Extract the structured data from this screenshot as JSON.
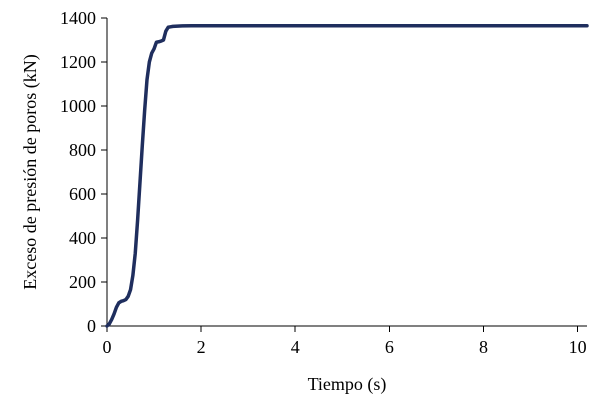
{
  "chart_data": {
    "type": "line",
    "title": "",
    "xlabel": "Tiempo (s)",
    "ylabel": "Exceso de presión de poros (kN)",
    "xlim": [
      0,
      10.2
    ],
    "ylim": [
      0,
      1400
    ],
    "xticks": [
      0,
      2,
      4,
      6,
      8,
      10
    ],
    "yticks": [
      0,
      200,
      400,
      600,
      800,
      1000,
      1200,
      1400
    ],
    "grid": false,
    "legend": "none",
    "series_color": "#1f2e5e",
    "series": [
      {
        "x": [
          0,
          0.05,
          0.1,
          0.15,
          0.2,
          0.25,
          0.3,
          0.35,
          0.4,
          0.45,
          0.5,
          0.55,
          0.6,
          0.65,
          0.7,
          0.75,
          0.8,
          0.85,
          0.9,
          0.95,
          1.0,
          1.05,
          1.1,
          1.15,
          1.2,
          1.25,
          1.3,
          1.35,
          1.4,
          1.5,
          1.6,
          1.8,
          2.0,
          4.0,
          6.0,
          8.0,
          10.2
        ],
        "y": [
          0,
          10,
          30,
          55,
          85,
          105,
          112,
          115,
          120,
          135,
          165,
          230,
          330,
          480,
          650,
          820,
          980,
          1120,
          1200,
          1240,
          1260,
          1290,
          1292,
          1295,
          1300,
          1340,
          1358,
          1360,
          1362,
          1363,
          1364,
          1365,
          1365,
          1365,
          1365,
          1365,
          1365
        ]
      }
    ]
  }
}
